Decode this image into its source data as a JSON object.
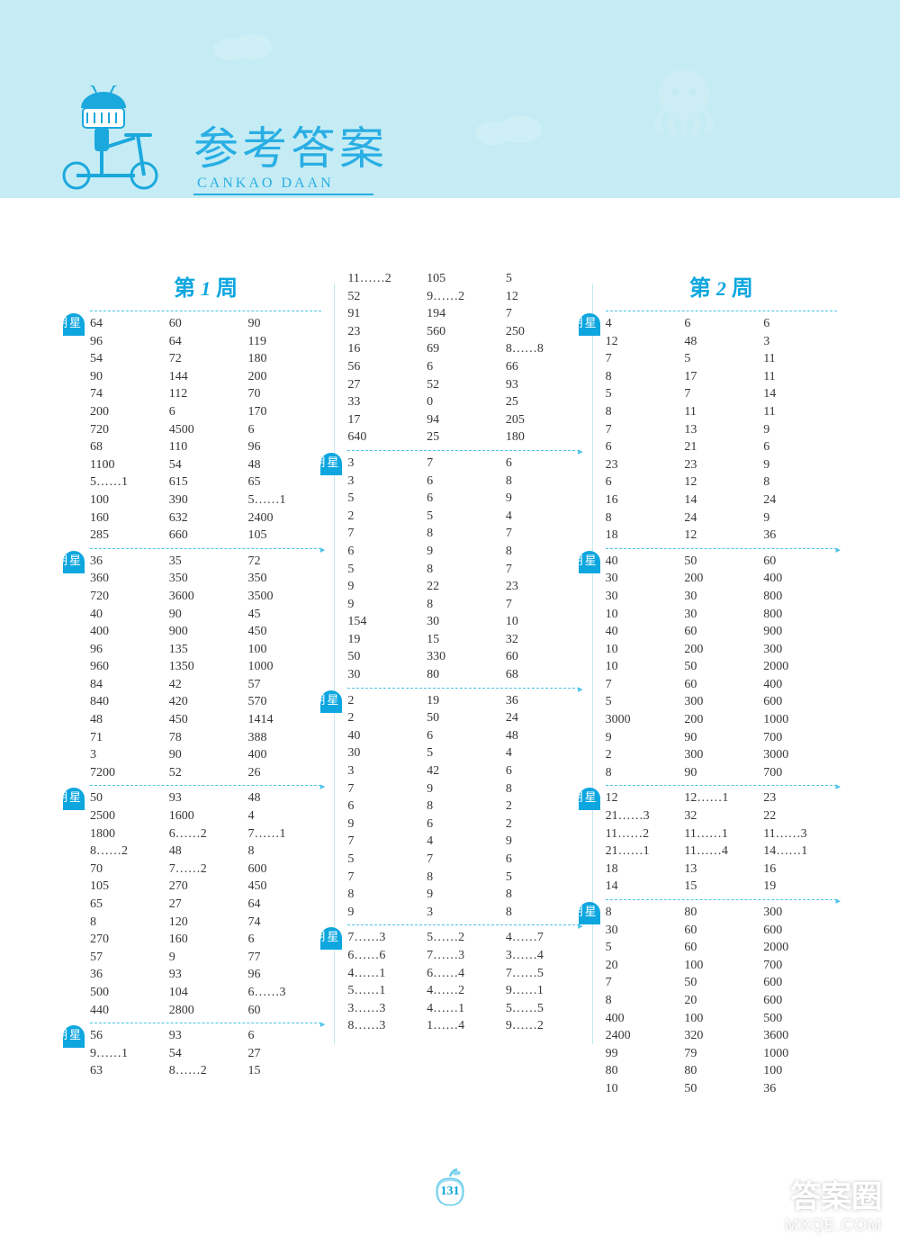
{
  "header": {
    "title_cn": "参考答案",
    "title_en": "CANKAO  DAAN"
  },
  "page_number": "131",
  "watermark": {
    "line1": "答案圈",
    "line2": "MXQE.COM"
  },
  "colors": {
    "header_bg": "#c5ecf4",
    "accent": "#0da6df",
    "dash": "#4dc3e8",
    "text": "#363836"
  },
  "columns": [
    {
      "week_title": "第 1 周",
      "days": [
        {
          "tab": "星期一",
          "rows": [
            [
              "64",
              "60",
              "90"
            ],
            [
              "96",
              "64",
              "119"
            ],
            [
              "54",
              "72",
              "180"
            ],
            [
              "90",
              "144",
              "200"
            ],
            [
              "74",
              "112",
              "70"
            ],
            [
              "200",
              "6",
              "170"
            ],
            [
              "720",
              "4500",
              "6"
            ],
            [
              "68",
              "110",
              "96"
            ],
            [
              "1100",
              "54",
              "48"
            ],
            [
              "5……1",
              "615",
              "65"
            ],
            [
              "100",
              "390",
              "5……1"
            ],
            [
              "160",
              "632",
              "2400"
            ],
            [
              "285",
              "660",
              "105"
            ]
          ]
        },
        {
          "tab": "星期二",
          "rows": [
            [
              "36",
              "35",
              "72"
            ],
            [
              "360",
              "350",
              "350"
            ],
            [
              "720",
              "3600",
              "3500"
            ],
            [
              "40",
              "90",
              "45"
            ],
            [
              "400",
              "900",
              "450"
            ],
            [
              "96",
              "135",
              "100"
            ],
            [
              "960",
              "1350",
              "1000"
            ],
            [
              "84",
              "42",
              "57"
            ],
            [
              "840",
              "420",
              "570"
            ],
            [
              "48",
              "450",
              "1414"
            ],
            [
              "71",
              "78",
              "388"
            ],
            [
              "3",
              "90",
              "400"
            ],
            [
              "7200",
              "52",
              "26"
            ]
          ]
        },
        {
          "tab": "星期三",
          "rows": [
            [
              "50",
              "93",
              "48"
            ],
            [
              "2500",
              "1600",
              "4"
            ],
            [
              "1800",
              "6……2",
              "7……1"
            ],
            [
              "8……2",
              "48",
              "8"
            ],
            [
              "70",
              "7……2",
              "600"
            ],
            [
              "105",
              "270",
              "450"
            ],
            [
              "65",
              "27",
              "64"
            ],
            [
              "8",
              "120",
              "74"
            ],
            [
              "270",
              "160",
              "6"
            ],
            [
              "57",
              "9",
              "77"
            ],
            [
              "36",
              "93",
              "96"
            ],
            [
              "500",
              "104",
              "6……3"
            ],
            [
              "440",
              "2800",
              "60"
            ]
          ]
        },
        {
          "tab": "星期四",
          "rows": [
            [
              "56",
              "93",
              "6"
            ],
            [
              "9……1",
              "54",
              "27"
            ],
            [
              "63",
              "8……2",
              "15"
            ]
          ]
        }
      ]
    },
    {
      "week_title": "",
      "days": [
        {
          "tab": "",
          "rows": [
            [
              "11……2",
              "105",
              "5"
            ],
            [
              "52",
              "9……2",
              "12"
            ],
            [
              "91",
              "194",
              "7"
            ],
            [
              "23",
              "560",
              "250"
            ],
            [
              "16",
              "69",
              "8……8"
            ],
            [
              "56",
              "6",
              "66"
            ],
            [
              "27",
              "52",
              "93"
            ],
            [
              "33",
              "0",
              "25"
            ],
            [
              "17",
              "94",
              "205"
            ],
            [
              "640",
              "25",
              "180"
            ]
          ]
        },
        {
          "tab": "星期五",
          "rows": [
            [
              "3",
              "7",
              "6"
            ],
            [
              "3",
              "6",
              "8"
            ],
            [
              "5",
              "6",
              "9"
            ],
            [
              "2",
              "5",
              "4"
            ],
            [
              "7",
              "8",
              "7"
            ],
            [
              "6",
              "9",
              "8"
            ],
            [
              "5",
              "8",
              "7"
            ],
            [
              "9",
              "22",
              "23"
            ],
            [
              "9",
              "8",
              "7"
            ],
            [
              "154",
              "30",
              "10"
            ],
            [
              "19",
              "15",
              "32"
            ],
            [
              "50",
              "330",
              "60"
            ],
            [
              "30",
              "80",
              "68"
            ]
          ]
        },
        {
          "tab": "星期六",
          "rows": [
            [
              "2",
              "19",
              "36"
            ],
            [
              "2",
              "50",
              "24"
            ],
            [
              "40",
              "6",
              "48"
            ],
            [
              "30",
              "5",
              "4"
            ],
            [
              "3",
              "42",
              "6"
            ],
            [
              "7",
              "9",
              "8"
            ],
            [
              "6",
              "8",
              "2"
            ],
            [
              "9",
              "6",
              "2"
            ],
            [
              "7",
              "4",
              "9"
            ],
            [
              "5",
              "7",
              "6"
            ],
            [
              "7",
              "8",
              "5"
            ],
            [
              "8",
              "9",
              "8"
            ],
            [
              "9",
              "3",
              "8"
            ]
          ]
        },
        {
          "tab": "星期日",
          "rows": [
            [
              "7……3",
              "5……2",
              "4……7"
            ],
            [
              "6……6",
              "7……3",
              "3……4"
            ],
            [
              "4……1",
              "6……4",
              "7……5"
            ],
            [
              "5……1",
              "4……2",
              "9……1"
            ],
            [
              "3……3",
              "4……1",
              "5……5"
            ],
            [
              "8……3",
              "1……4",
              "9……2"
            ]
          ]
        }
      ]
    },
    {
      "week_title": "第 2 周",
      "days": [
        {
          "tab": "星期一",
          "rows": [
            [
              "4",
              "6",
              "6"
            ],
            [
              "12",
              "48",
              "3"
            ],
            [
              "7",
              "5",
              "11"
            ],
            [
              "8",
              "17",
              "11"
            ],
            [
              "5",
              "7",
              "14"
            ],
            [
              "8",
              "11",
              "11"
            ],
            [
              "7",
              "13",
              "9"
            ],
            [
              "6",
              "21",
              "6"
            ],
            [
              "23",
              "23",
              "9"
            ],
            [
              "6",
              "12",
              "8"
            ],
            [
              "16",
              "14",
              "24"
            ],
            [
              "8",
              "24",
              "9"
            ],
            [
              "18",
              "12",
              "36"
            ]
          ]
        },
        {
          "tab": "星期二",
          "rows": [
            [
              "40",
              "50",
              "60"
            ],
            [
              "30",
              "200",
              "400"
            ],
            [
              "30",
              "30",
              "800"
            ],
            [
              "10",
              "30",
              "800"
            ],
            [
              "40",
              "60",
              "900"
            ],
            [
              "10",
              "200",
              "300"
            ],
            [
              "10",
              "50",
              "2000"
            ],
            [
              "7",
              "60",
              "400"
            ],
            [
              "5",
              "300",
              "600"
            ],
            [
              "3000",
              "200",
              "1000"
            ],
            [
              "9",
              "90",
              "700"
            ],
            [
              "2",
              "300",
              "3000"
            ],
            [
              "8",
              "90",
              "700"
            ]
          ]
        },
        {
          "tab": "星期三",
          "rows": [
            [
              "12",
              "12……1",
              "23"
            ],
            [
              "21……3",
              "32",
              "22"
            ],
            [
              "11……2",
              "11……1",
              "11……3"
            ],
            [
              "21……1",
              "11……4",
              "14……1"
            ],
            [
              "18",
              "13",
              "16"
            ],
            [
              "14",
              "15",
              "19"
            ]
          ]
        },
        {
          "tab": "星期四",
          "rows": [
            [
              "8",
              "80",
              "300"
            ],
            [
              "30",
              "60",
              "600"
            ],
            [
              "5",
              "60",
              "2000"
            ],
            [
              "20",
              "100",
              "700"
            ],
            [
              "7",
              "50",
              "600"
            ],
            [
              "8",
              "20",
              "600"
            ],
            [
              "400",
              "100",
              "500"
            ],
            [
              "2400",
              "320",
              "3600"
            ],
            [
              "99",
              "79",
              "1000"
            ],
            [
              "80",
              "80",
              "100"
            ],
            [
              "10",
              "50",
              "36"
            ]
          ]
        }
      ]
    }
  ]
}
